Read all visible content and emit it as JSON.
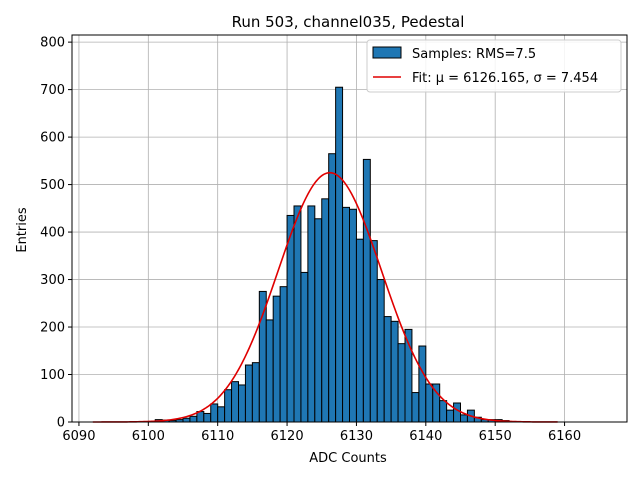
{
  "chart_data": {
    "type": "bar",
    "title": "Run 503, channel035, Pedestal",
    "xlabel": "ADC Counts",
    "ylabel": "Entries",
    "xlim": [
      6089,
      6169
    ],
    "ylim": [
      0,
      815
    ],
    "xticks": [
      6090,
      6100,
      6110,
      6120,
      6130,
      6140,
      6150,
      6160
    ],
    "yticks": [
      0,
      100,
      200,
      300,
      400,
      500,
      600,
      700,
      800
    ],
    "grid": true,
    "bar_color": "#1f77b4",
    "fit_color": "#e00000",
    "histogram": {
      "name": "Samples: RMS=7.5",
      "bin_width": 1,
      "bin_starts": [
        6101,
        6102,
        6103,
        6104,
        6105,
        6106,
        6107,
        6108,
        6109,
        6110,
        6111,
        6112,
        6113,
        6114,
        6115,
        6116,
        6117,
        6118,
        6119,
        6120,
        6121,
        6122,
        6123,
        6124,
        6125,
        6126,
        6127,
        6128,
        6129,
        6130,
        6131,
        6132,
        6133,
        6134,
        6135,
        6136,
        6137,
        6138,
        6139,
        6140,
        6141,
        6142,
        6143,
        6144,
        6145,
        6146,
        6147,
        6148,
        6149,
        6150,
        6151
      ],
      "values": [
        5,
        4,
        3,
        5,
        8,
        12,
        22,
        18,
        38,
        32,
        68,
        85,
        78,
        120,
        125,
        275,
        215,
        265,
        285,
        435,
        455,
        315,
        455,
        428,
        470,
        565,
        705,
        452,
        448,
        385,
        553,
        382,
        300,
        222,
        212,
        165,
        195,
        62,
        160,
        80,
        80,
        45,
        25,
        40,
        15,
        25,
        10,
        5,
        5,
        5,
        3
      ]
    },
    "fit": {
      "name": "Fit: μ = 6126.165, σ = 7.454",
      "mu": 6126.165,
      "sigma": 7.454,
      "amplitude": 525,
      "x_range": [
        6092,
        6159
      ]
    },
    "legend_position": "top-right"
  }
}
